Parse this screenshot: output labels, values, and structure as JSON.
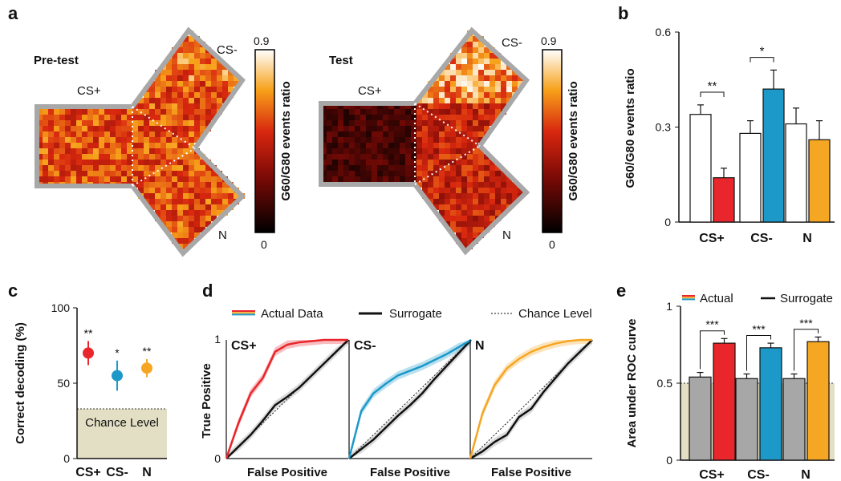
{
  "panels": {
    "a": "a",
    "b": "b",
    "c": "c",
    "d": "d",
    "e": "e"
  },
  "chart_data": [
    {
      "panel": "a",
      "type": "heatmap",
      "maps": [
        {
          "title": "Pre-test",
          "arms": [
            "CS+",
            "CS-",
            "N"
          ]
        },
        {
          "title": "Test",
          "arms": [
            "CS+",
            "CS-",
            "N"
          ]
        }
      ],
      "colorbar": {
        "label": "G60/G80 events ratio",
        "min_label": "0",
        "max_label": "0.9",
        "min": 0,
        "max": 0.9
      }
    },
    {
      "panel": "b",
      "type": "bar",
      "ylabel": "G60/G80 events  ratio",
      "ylim": [
        0,
        0.6
      ],
      "yticks": [
        "0",
        "0.3",
        "0.6"
      ],
      "categories": [
        "CS+",
        "CS-",
        "N"
      ],
      "series": [
        {
          "values": [
            0.34,
            0.28,
            0.31
          ],
          "errors": [
            0.03,
            0.04,
            0.05
          ],
          "colors": [
            "#ffffff",
            "#ffffff",
            "#ffffff"
          ]
        },
        {
          "values": [
            0.14,
            0.42,
            0.26
          ],
          "errors": [
            0.03,
            0.06,
            0.06
          ],
          "colors": [
            "#e8262b",
            "#1c99c9",
            "#f5a623"
          ]
        }
      ],
      "significance": [
        "**",
        "*",
        ""
      ]
    },
    {
      "panel": "c",
      "type": "scatter",
      "ylabel": "Correct decoding (%)",
      "ylim": [
        0,
        100
      ],
      "yticks": [
        "0",
        "50",
        "100"
      ],
      "categories": [
        "CS+",
        "CS-",
        "N"
      ],
      "values": [
        70,
        55,
        60
      ],
      "errors": [
        8,
        10,
        6
      ],
      "colors": [
        "#e8262b",
        "#1c99c9",
        "#f5a623"
      ],
      "significance": [
        "**",
        "*",
        "**"
      ],
      "chance_level": 33,
      "chance_label": "Chance Level"
    },
    {
      "panel": "d",
      "type": "line",
      "legend": {
        "actual": "Actual Data",
        "surrogate": "Surrogate",
        "chance": "Chance Level"
      },
      "xlabel": "False Positive",
      "ylabel": "True Positive",
      "ytick_top": "1",
      "ytick_bottom": "0",
      "x": [
        0,
        0.1,
        0.2,
        0.3,
        0.4,
        0.5,
        0.6,
        0.7,
        0.8,
        0.9,
        1.0
      ],
      "panels": [
        {
          "name": "CS+",
          "color": "#e8262b",
          "actual": [
            0,
            0.3,
            0.55,
            0.68,
            0.9,
            0.96,
            0.98,
            0.99,
            1.0,
            1.0,
            1.0
          ],
          "surrogate": [
            0,
            0.1,
            0.2,
            0.32,
            0.45,
            0.52,
            0.6,
            0.7,
            0.8,
            0.9,
            1.0
          ]
        },
        {
          "name": "CS-",
          "color": "#1c99c9",
          "actual": [
            0,
            0.4,
            0.55,
            0.63,
            0.7,
            0.74,
            0.78,
            0.83,
            0.88,
            0.94,
            1.0
          ],
          "surrogate": [
            0,
            0.08,
            0.16,
            0.26,
            0.36,
            0.45,
            0.55,
            0.67,
            0.78,
            0.89,
            1.0
          ]
        },
        {
          "name": "N",
          "color": "#f5a623",
          "actual": [
            0,
            0.38,
            0.62,
            0.76,
            0.84,
            0.9,
            0.94,
            0.97,
            0.99,
            1.0,
            1.0
          ],
          "surrogate": [
            0,
            0.06,
            0.14,
            0.2,
            0.35,
            0.42,
            0.56,
            0.68,
            0.8,
            0.9,
            1.0
          ]
        }
      ]
    },
    {
      "panel": "e",
      "type": "bar",
      "legend": {
        "actual": "Actual",
        "surrogate": "Surrogate"
      },
      "ylabel": "Area under ROC curve",
      "ylim": [
        0,
        1
      ],
      "yticks": [
        "0",
        "0.5",
        "1"
      ],
      "chance_level": 0.5,
      "categories": [
        "CS+",
        "CS-",
        "N"
      ],
      "series": [
        {
          "name": "Surrogate",
          "values": [
            0.54,
            0.53,
            0.53
          ],
          "errors": [
            0.03,
            0.03,
            0.03
          ],
          "colors": [
            "#a7a7a7",
            "#a7a7a7",
            "#a7a7a7"
          ]
        },
        {
          "name": "Actual",
          "values": [
            0.76,
            0.73,
            0.77
          ],
          "errors": [
            0.03,
            0.03,
            0.03
          ],
          "colors": [
            "#e8262b",
            "#1c99c9",
            "#f5a623"
          ]
        }
      ],
      "significance": [
        "***",
        "***",
        "***"
      ]
    }
  ]
}
